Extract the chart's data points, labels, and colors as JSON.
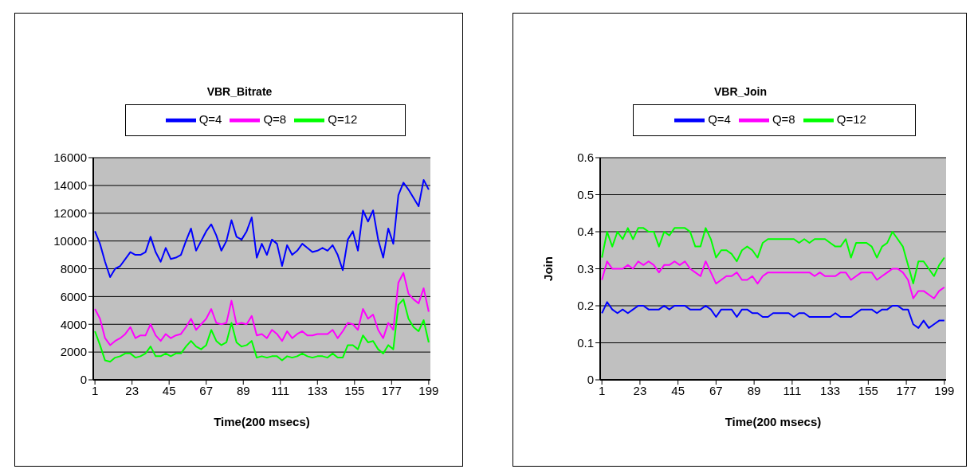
{
  "chart_data": [
    {
      "type": "line",
      "title": "VBR_Bitrate",
      "xlabel": "Time(200 msecs)",
      "x": [
        1,
        4,
        7,
        10,
        13,
        16,
        19,
        22,
        25,
        28,
        31,
        34,
        37,
        40,
        43,
        46,
        49,
        52,
        55,
        58,
        61,
        64,
        67,
        70,
        73,
        76,
        79,
        82,
        85,
        88,
        91,
        94,
        97,
        100,
        103,
        106,
        109,
        112,
        115,
        118,
        121,
        124,
        127,
        130,
        133,
        136,
        139,
        142,
        145,
        148,
        151,
        154,
        157,
        160,
        163,
        166,
        169,
        172,
        175,
        178,
        181,
        184,
        187,
        190,
        193,
        196,
        199
      ],
      "series": [
        {
          "name": "Q=4",
          "color": "#0000ff",
          "values": [
            10700,
            9800,
            8500,
            7400,
            8000,
            8200,
            8700,
            9200,
            9000,
            9000,
            9200,
            10300,
            9200,
            8500,
            9500,
            8700,
            8800,
            9000,
            10000,
            10900,
            9300,
            10000,
            10700,
            11200,
            10400,
            9300,
            10000,
            11500,
            10300,
            10100,
            10700,
            11700,
            8800,
            9800,
            9000,
            10100,
            9800,
            8200,
            9700,
            9000,
            9300,
            9800,
            9500,
            9200,
            9300,
            9500,
            9300,
            9700,
            9000,
            7900,
            10100,
            10700,
            9300,
            12200,
            11400,
            12200,
            10100,
            8800,
            10900,
            9800,
            13300,
            14200,
            13700,
            13100,
            12500,
            14400,
            13700
          ]
        },
        {
          "name": "Q=8",
          "color": "#ff00ff",
          "values": [
            5100,
            4400,
            3000,
            2500,
            2800,
            3000,
            3300,
            3800,
            3000,
            3200,
            3200,
            4000,
            3200,
            2800,
            3300,
            3000,
            3200,
            3300,
            3800,
            4400,
            3600,
            4000,
            4400,
            5100,
            4100,
            4000,
            4100,
            5700,
            4000,
            4100,
            4000,
            4600,
            3200,
            3300,
            3000,
            3600,
            3300,
            2800,
            3500,
            3000,
            3300,
            3500,
            3200,
            3200,
            3300,
            3300,
            3300,
            3600,
            3000,
            3500,
            4100,
            4000,
            3600,
            5100,
            4400,
            4700,
            3600,
            3000,
            4100,
            3600,
            7000,
            7700,
            6200,
            5800,
            5500,
            6600,
            4900
          ]
        },
        {
          "name": "Q=12",
          "color": "#00ff00",
          "values": [
            3500,
            2500,
            1400,
            1300,
            1600,
            1700,
            1900,
            1900,
            1600,
            1700,
            1900,
            2400,
            1700,
            1700,
            1900,
            1700,
            1900,
            1900,
            2400,
            2800,
            2400,
            2200,
            2500,
            3600,
            2800,
            2500,
            2700,
            4100,
            2700,
            2400,
            2500,
            2800,
            1600,
            1700,
            1600,
            1700,
            1700,
            1400,
            1700,
            1600,
            1700,
            1900,
            1700,
            1600,
            1700,
            1700,
            1600,
            1900,
            1600,
            1600,
            2500,
            2500,
            2200,
            3200,
            2700,
            2800,
            2200,
            1900,
            2500,
            2200,
            5400,
            5800,
            4400,
            3800,
            3500,
            4300,
            2700
          ]
        }
      ],
      "xlim": [
        0,
        200
      ],
      "xticks": [
        1,
        23,
        45,
        67,
        89,
        111,
        133,
        155,
        177,
        199
      ],
      "ylim": [
        0,
        16000
      ],
      "yticks": [
        0,
        2000,
        4000,
        6000,
        8000,
        10000,
        12000,
        14000,
        16000
      ],
      "grid": "y",
      "legend": "top"
    },
    {
      "type": "line",
      "title": "VBR_Join",
      "xlabel": "Time(200 msecs)",
      "ylabel": "Join",
      "x": [
        1,
        4,
        7,
        10,
        13,
        16,
        19,
        22,
        25,
        28,
        31,
        34,
        37,
        40,
        43,
        46,
        49,
        52,
        55,
        58,
        61,
        64,
        67,
        70,
        73,
        76,
        79,
        82,
        85,
        88,
        91,
        94,
        97,
        100,
        103,
        106,
        109,
        112,
        115,
        118,
        121,
        124,
        127,
        130,
        133,
        136,
        139,
        142,
        145,
        148,
        151,
        154,
        157,
        160,
        163,
        166,
        169,
        172,
        175,
        178,
        181,
        184,
        187,
        190,
        193,
        196,
        199
      ],
      "series": [
        {
          "name": "Q=4",
          "color": "#0000ff",
          "values": [
            0.18,
            0.21,
            0.19,
            0.18,
            0.19,
            0.18,
            0.19,
            0.2,
            0.2,
            0.19,
            0.19,
            0.19,
            0.2,
            0.19,
            0.2,
            0.2,
            0.2,
            0.19,
            0.19,
            0.19,
            0.2,
            0.19,
            0.17,
            0.19,
            0.19,
            0.19,
            0.17,
            0.19,
            0.19,
            0.18,
            0.18,
            0.17,
            0.17,
            0.18,
            0.18,
            0.18,
            0.18,
            0.17,
            0.18,
            0.18,
            0.17,
            0.17,
            0.17,
            0.17,
            0.17,
            0.18,
            0.17,
            0.17,
            0.17,
            0.18,
            0.19,
            0.19,
            0.19,
            0.18,
            0.19,
            0.19,
            0.2,
            0.2,
            0.19,
            0.19,
            0.15,
            0.14,
            0.16,
            0.14,
            0.15,
            0.16,
            0.16
          ]
        },
        {
          "name": "Q=8",
          "color": "#ff00ff",
          "values": [
            0.27,
            0.32,
            0.3,
            0.3,
            0.3,
            0.31,
            0.3,
            0.32,
            0.31,
            0.32,
            0.31,
            0.29,
            0.31,
            0.31,
            0.32,
            0.31,
            0.32,
            0.3,
            0.29,
            0.28,
            0.32,
            0.29,
            0.26,
            0.27,
            0.28,
            0.28,
            0.29,
            0.27,
            0.27,
            0.28,
            0.26,
            0.28,
            0.29,
            0.29,
            0.29,
            0.29,
            0.29,
            0.29,
            0.29,
            0.29,
            0.29,
            0.28,
            0.29,
            0.28,
            0.28,
            0.28,
            0.29,
            0.29,
            0.27,
            0.28,
            0.29,
            0.29,
            0.29,
            0.27,
            0.28,
            0.29,
            0.3,
            0.3,
            0.29,
            0.27,
            0.22,
            0.24,
            0.24,
            0.23,
            0.22,
            0.24,
            0.25
          ]
        },
        {
          "name": "Q=12",
          "color": "#00ff00",
          "values": [
            0.33,
            0.4,
            0.36,
            0.4,
            0.38,
            0.41,
            0.38,
            0.41,
            0.41,
            0.4,
            0.4,
            0.36,
            0.4,
            0.39,
            0.41,
            0.41,
            0.41,
            0.4,
            0.36,
            0.36,
            0.41,
            0.38,
            0.33,
            0.35,
            0.35,
            0.34,
            0.32,
            0.35,
            0.36,
            0.35,
            0.33,
            0.37,
            0.38,
            0.38,
            0.38,
            0.38,
            0.38,
            0.38,
            0.37,
            0.38,
            0.37,
            0.38,
            0.38,
            0.38,
            0.37,
            0.36,
            0.36,
            0.38,
            0.33,
            0.37,
            0.37,
            0.37,
            0.36,
            0.33,
            0.36,
            0.37,
            0.4,
            0.38,
            0.36,
            0.31,
            0.26,
            0.32,
            0.32,
            0.3,
            0.28,
            0.31,
            0.33
          ]
        }
      ],
      "xlim": [
        0,
        200
      ],
      "xticks": [
        1,
        23,
        45,
        67,
        89,
        111,
        133,
        155,
        177,
        199
      ],
      "ylim": [
        0,
        0.6
      ],
      "yticks": [
        0,
        0.1,
        0.2,
        0.3,
        0.4,
        0.5,
        0.6
      ],
      "grid": "y",
      "legend": "top"
    }
  ]
}
